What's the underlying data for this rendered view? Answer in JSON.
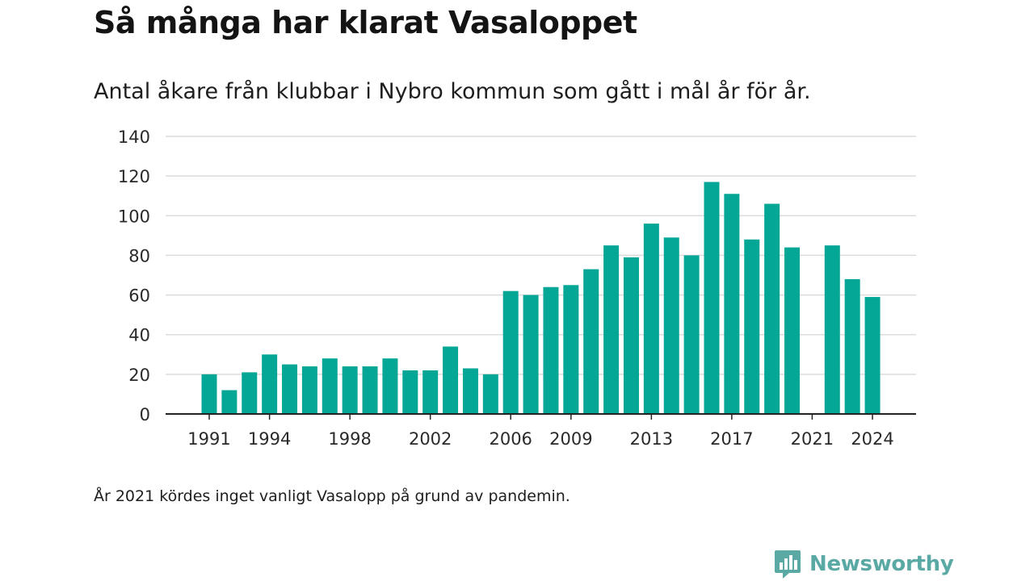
{
  "header": {
    "title": "Så många har klarat Vasaloppet",
    "subtitle": "Antal åkare från klubbar i Nybro kommun som gått i mål år för år."
  },
  "footer": {
    "note": "År 2021 kördes inget vanligt Vasalopp på grund av pandemin.",
    "brand": "Newsworthy",
    "brand_icon": "bar-chart-speech-bubble-icon"
  },
  "colors": {
    "bar": "#04a696",
    "brand": "#5aa9a5",
    "grid": "#dcdcdc",
    "axis": "#222222"
  },
  "chart_data": {
    "type": "bar",
    "title": "Så många har klarat Vasaloppet",
    "subtitle": "Antal åkare från klubbar i Nybro kommun som gått i mål år för år.",
    "xlabel": "",
    "ylabel": "",
    "categories": [
      1991,
      1992,
      1993,
      1994,
      1995,
      1996,
      1997,
      1998,
      1999,
      2000,
      2001,
      2002,
      2003,
      2004,
      2005,
      2006,
      2007,
      2008,
      2009,
      2010,
      2011,
      2012,
      2013,
      2014,
      2015,
      2016,
      2017,
      2018,
      2019,
      2020,
      2021,
      2022,
      2023,
      2024
    ],
    "values": [
      20,
      12,
      21,
      30,
      25,
      24,
      28,
      24,
      24,
      28,
      22,
      22,
      34,
      23,
      20,
      62,
      60,
      64,
      65,
      73,
      85,
      79,
      96,
      89,
      80,
      117,
      111,
      88,
      106,
      84,
      null,
      85,
      68,
      59
    ],
    "x_tick_labels": [
      "1991",
      "1994",
      "1998",
      "2002",
      "2006",
      "2009",
      "2013",
      "2017",
      "2021",
      "2024"
    ],
    "y_ticks": [
      0,
      20,
      40,
      60,
      80,
      100,
      120,
      140
    ],
    "ylim": [
      0,
      140
    ],
    "grid": true,
    "legend": "none"
  }
}
